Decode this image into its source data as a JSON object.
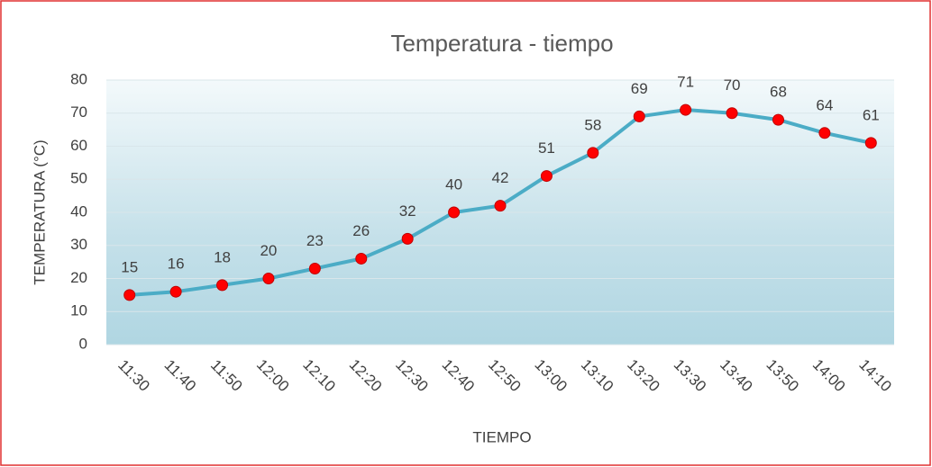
{
  "chart_data": {
    "type": "line",
    "title": "Temperatura - tiempo",
    "x_label": "TIEMPO",
    "y_label": "TEMPERATURA (°C)",
    "categories": [
      "11:30",
      "11:40",
      "11:50",
      "12:00",
      "12:10",
      "12:20",
      "12:30",
      "12:40",
      "12:50",
      "13:00",
      "13:10",
      "13:20",
      "13:30",
      "13:40",
      "13:50",
      "14:00",
      "14:10"
    ],
    "values": [
      15,
      16,
      18,
      20,
      23,
      26,
      32,
      40,
      42,
      51,
      58,
      69,
      71,
      70,
      68,
      64,
      61
    ],
    "color": "#4bacc6",
    "marker_color": "#ff0000",
    "ylim": [
      0,
      80
    ],
    "yticks": [
      0,
      10,
      20,
      30,
      40,
      50,
      60,
      70,
      80
    ],
    "grid": true
  }
}
